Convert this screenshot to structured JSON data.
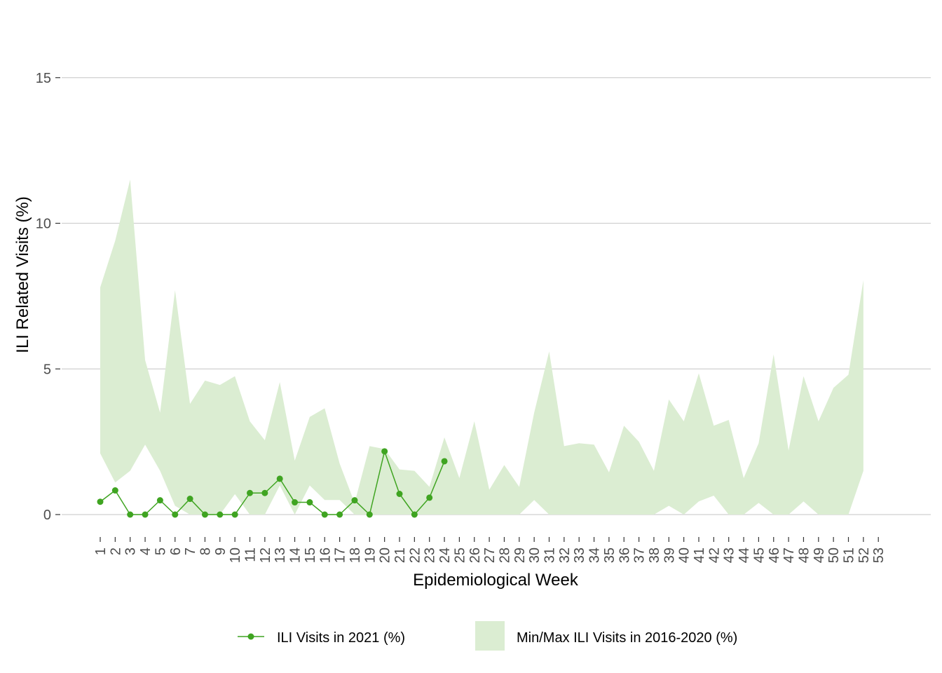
{
  "chart_data": {
    "type": "line",
    "title": "",
    "xlabel": "Epidemiological Week",
    "ylabel": "ILI Related Visits (%)",
    "ylim": [
      -0.55,
      16.3
    ],
    "yticks": [
      0,
      5,
      10,
      15
    ],
    "x": [
      1,
      2,
      3,
      4,
      5,
      6,
      7,
      8,
      9,
      10,
      11,
      12,
      13,
      14,
      15,
      16,
      17,
      18,
      19,
      20,
      21,
      22,
      23,
      24,
      25,
      26,
      27,
      28,
      29,
      30,
      31,
      32,
      33,
      34,
      35,
      36,
      37,
      38,
      39,
      40,
      41,
      42,
      43,
      44,
      45,
      46,
      47,
      48,
      49,
      50,
      51,
      52,
      53
    ],
    "grid": "horizontal",
    "legend_position": "bottom",
    "series": [
      {
        "name": "ILI Visits in 2021 (%)",
        "kind": "line-points",
        "color": "#3fa421",
        "x": [
          1,
          2,
          3,
          4,
          5,
          6,
          7,
          8,
          9,
          10,
          11,
          12,
          13,
          14,
          15,
          16,
          17,
          18,
          19,
          20,
          21,
          22,
          23,
          24
        ],
        "values": [
          0.44,
          0.83,
          0.0,
          0.0,
          0.49,
          0.0,
          0.54,
          0.0,
          0.0,
          0.0,
          0.74,
          0.74,
          1.23,
          0.42,
          0.42,
          0.0,
          0.0,
          0.49,
          0.0,
          2.17,
          0.71,
          0.0,
          0.58,
          1.83
        ]
      },
      {
        "name": "Min/Max ILI Visits in 2016-2020 (%)",
        "kind": "ribbon",
        "color": "#dbedd2",
        "x": [
          1,
          2,
          3,
          4,
          5,
          6,
          7,
          8,
          9,
          10,
          11,
          12,
          13,
          14,
          15,
          16,
          17,
          18,
          19,
          20,
          21,
          22,
          23,
          24,
          25,
          26,
          27,
          28,
          29,
          30,
          31,
          32,
          33,
          34,
          35,
          36,
          37,
          38,
          39,
          40,
          41,
          42,
          43,
          44,
          45,
          46,
          47,
          48,
          49,
          50,
          51,
          52
        ],
        "min": [
          2.1,
          1.1,
          1.5,
          2.4,
          1.5,
          0.3,
          0.0,
          0.0,
          0.0,
          0.7,
          0.0,
          0.0,
          1.0,
          0.0,
          1.0,
          0.5,
          0.5,
          0.0,
          0.0,
          0.0,
          0.0,
          0.0,
          0.0,
          0.0,
          0.0,
          0.0,
          0.0,
          0.0,
          0.0,
          0.5,
          0.0,
          0.0,
          0.0,
          0.0,
          0.0,
          0.0,
          0.0,
          0.0,
          0.3,
          0.0,
          0.45,
          0.65,
          0.0,
          0.0,
          0.4,
          0.0,
          0.0,
          0.45,
          0.0,
          0.0,
          0.0,
          1.5
        ],
        "max": [
          7.8,
          9.4,
          11.5,
          5.3,
          3.5,
          7.7,
          3.8,
          4.6,
          4.45,
          4.75,
          3.2,
          2.55,
          4.55,
          1.85,
          3.35,
          3.65,
          1.75,
          0.4,
          2.35,
          2.25,
          1.55,
          1.5,
          0.95,
          2.65,
          1.25,
          3.2,
          0.85,
          1.7,
          0.95,
          3.5,
          5.6,
          2.35,
          2.45,
          2.4,
          1.45,
          3.05,
          2.5,
          1.5,
          3.95,
          3.2,
          4.85,
          3.05,
          3.25,
          1.25,
          2.45,
          5.5,
          2.2,
          4.75,
          3.2,
          4.35,
          4.8,
          8.05
        ]
      }
    ]
  },
  "colors": {
    "line": "#3fa421",
    "ribbon": "#dbedd2",
    "grid": "#d0d0d0",
    "tick_text": "#4d4d4d"
  }
}
